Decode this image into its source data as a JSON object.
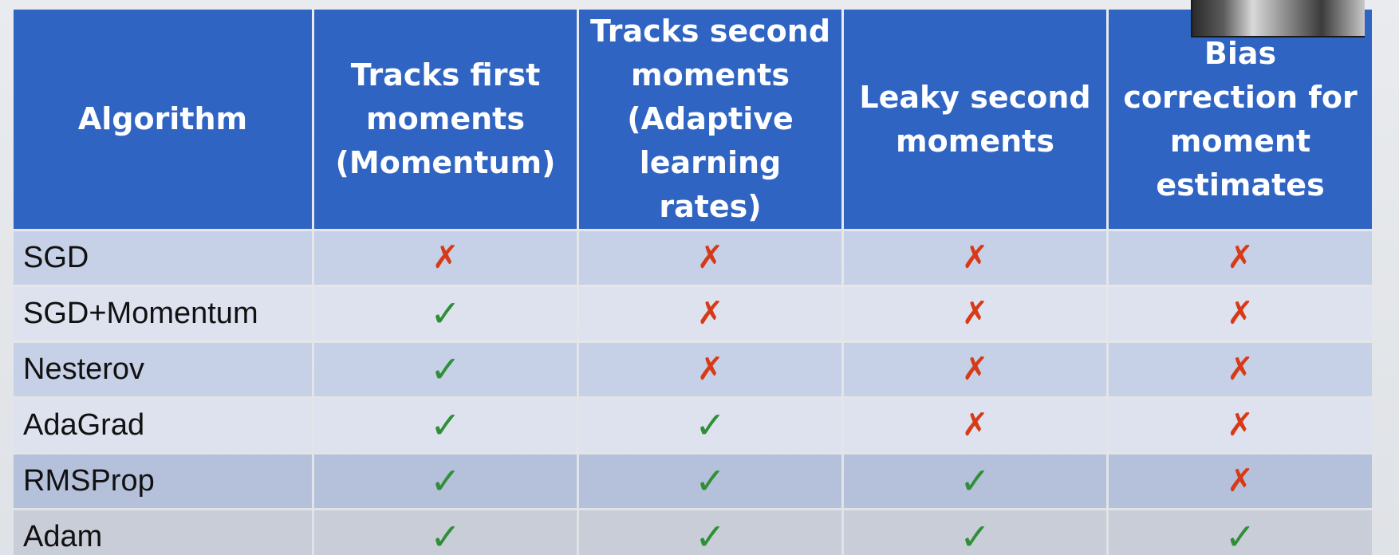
{
  "table": {
    "headers": [
      "Algorithm",
      "Tracks first moments (Momentum)",
      "Tracks second moments (Adaptive learning rates)",
      "Leaky second moments",
      "Bias correction for moment estimates"
    ],
    "rows": [
      {
        "algorithm": "SGD",
        "marks": [
          "✗",
          "✗",
          "✗",
          "✗"
        ]
      },
      {
        "algorithm": "SGD+Momentum",
        "marks": [
          "✓",
          "✗",
          "✗",
          "✗"
        ]
      },
      {
        "algorithm": "Nesterov",
        "marks": [
          "✓",
          "✗",
          "✗",
          "✗"
        ]
      },
      {
        "algorithm": "AdaGrad",
        "marks": [
          "✓",
          "✓",
          "✗",
          "✗"
        ]
      },
      {
        "algorithm": "RMSProp",
        "marks": [
          "✓",
          "✓",
          "✓",
          "✗"
        ]
      },
      {
        "algorithm": "Adam",
        "marks": [
          "✓",
          "✓",
          "✓",
          "✓"
        ]
      }
    ]
  },
  "colors": {
    "header_bg": "#2f64c3",
    "check": "#2f8f36",
    "cross": "#d73a17"
  },
  "icons": {
    "yes": "check-icon",
    "no": "cross-icon"
  }
}
